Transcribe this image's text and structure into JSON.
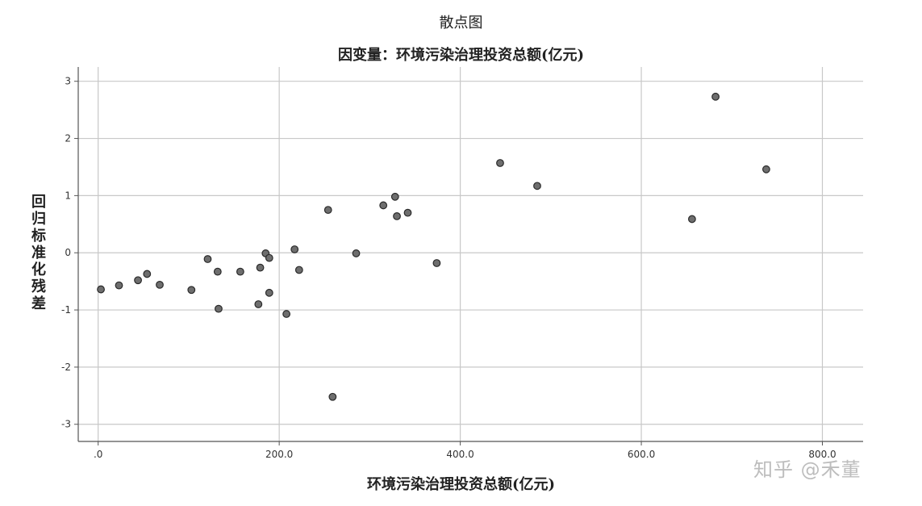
{
  "chart_data": {
    "type": "scatter",
    "title": "散点图",
    "subtitle": "因变量：环境污染治理投资总额(亿元)",
    "xlabel": "环境污染治理投资总额(亿元)",
    "ylabel": "回归标准化残差",
    "xlim": [
      -22,
      845
    ],
    "ylim": [
      -3.3,
      3.25
    ],
    "x_ticks": [
      0,
      200,
      400,
      600,
      800
    ],
    "x_tick_labels": [
      ".0",
      "200.0",
      "400.0",
      "600.0",
      "800.0"
    ],
    "y_ticks": [
      3,
      2,
      1,
      0,
      -1,
      -2,
      -3
    ],
    "y_tick_labels": [
      "3",
      "2",
      "1",
      "0",
      "-1",
      "-2",
      "-3"
    ],
    "grid": true,
    "points": [
      {
        "x": 3,
        "y": -0.64
      },
      {
        "x": 23,
        "y": -0.57
      },
      {
        "x": 44,
        "y": -0.48
      },
      {
        "x": 54,
        "y": -0.37
      },
      {
        "x": 68,
        "y": -0.56
      },
      {
        "x": 103,
        "y": -0.65
      },
      {
        "x": 121,
        "y": -0.11
      },
      {
        "x": 132,
        "y": -0.33
      },
      {
        "x": 133,
        "y": -0.98
      },
      {
        "x": 157,
        "y": -0.33
      },
      {
        "x": 177,
        "y": -0.9
      },
      {
        "x": 179,
        "y": -0.26
      },
      {
        "x": 185,
        "y": -0.01
      },
      {
        "x": 189,
        "y": -0.09
      },
      {
        "x": 189,
        "y": -0.7
      },
      {
        "x": 208,
        "y": -1.07
      },
      {
        "x": 217,
        "y": 0.06
      },
      {
        "x": 222,
        "y": -0.3
      },
      {
        "x": 254,
        "y": 0.75
      },
      {
        "x": 259,
        "y": -2.52
      },
      {
        "x": 285,
        "y": -0.01
      },
      {
        "x": 315,
        "y": 0.83
      },
      {
        "x": 328,
        "y": 0.98
      },
      {
        "x": 330,
        "y": 0.64
      },
      {
        "x": 342,
        "y": 0.7
      },
      {
        "x": 374,
        "y": -0.18
      },
      {
        "x": 444,
        "y": 1.57
      },
      {
        "x": 485,
        "y": 1.17
      },
      {
        "x": 656,
        "y": 0.59
      },
      {
        "x": 682,
        "y": 2.73
      },
      {
        "x": 738,
        "y": 1.46
      }
    ]
  },
  "watermark": "知乎 @禾董"
}
